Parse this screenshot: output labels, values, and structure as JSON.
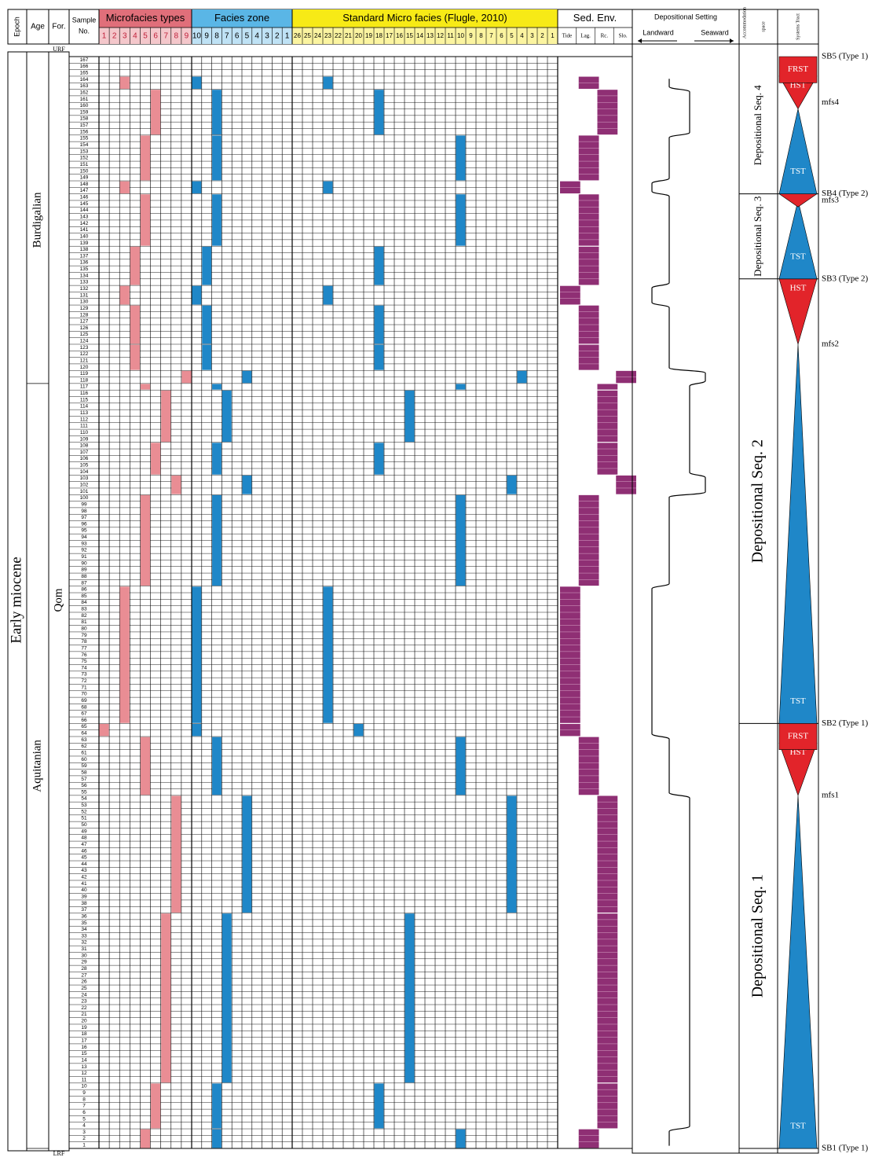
{
  "headers": {
    "epoch": "Epoch",
    "age": "Age",
    "formation": "For.",
    "sample": [
      "Sample",
      "No."
    ],
    "microfacies": "Microfacies types",
    "facies_zone": "Facies zone",
    "smf": "Standard Micro facies (Flugle, 2010)",
    "sed_env": "Sed. Env.",
    "dep_setting": "Depositional Setting",
    "landward": "Landward",
    "seaward": "Seaward",
    "accommodation": [
      "Accommodation",
      "space"
    ],
    "systems_tract": "Systems Tract"
  },
  "colors": {
    "pink": "#e98d94",
    "pink_header": "#e06f7a",
    "blue": "#1f87c8",
    "blue_header": "#5ab6e6",
    "yellow": "#f7ea16",
    "purple": "#8f2f74",
    "red": "#e2242a",
    "tri_blue": "#1f87c8"
  },
  "mf_cols": [
    "1",
    "2",
    "3",
    "4",
    "5",
    "6",
    "7",
    "8",
    "9"
  ],
  "fz_cols": [
    "10",
    "9",
    "8",
    "7",
    "6",
    "5",
    "4",
    "3",
    "2",
    "1"
  ],
  "smf_cols": [
    "26",
    "25",
    "24",
    "23",
    "22",
    "21",
    "20",
    "19",
    "18",
    "17",
    "16",
    "15",
    "14",
    "13",
    "12",
    "11",
    "10",
    "9",
    "8",
    "7",
    "6",
    "5",
    "4",
    "3",
    "2",
    "1"
  ],
  "env_cols": [
    "Tide",
    "Lag.",
    "Rc.",
    "Slo."
  ],
  "epoch_label": "Early miocene",
  "ages": [
    {
      "label": "Burdigalian",
      "from": 118,
      "to": 167
    },
    {
      "label": "Aquitanian",
      "from": 1,
      "to": 117
    }
  ],
  "formation": {
    "label": "Qom",
    "top": "URF",
    "bottom": "LRF"
  },
  "samples": {
    "first": 1,
    "last": 167
  },
  "rows": [
    {
      "from": 1,
      "to": 3,
      "mf": 5,
      "fz": 8,
      "smf": 10,
      "env": "Lag."
    },
    {
      "from": 4,
      "to": 10,
      "mf": 6,
      "fz": 8,
      "smf": 18,
      "env": "Rc."
    },
    {
      "from": 11,
      "to": 36,
      "mf": 7,
      "fz": 7,
      "smf": 15,
      "env": "Rc."
    },
    {
      "from": 37,
      "to": 54,
      "mf": 8,
      "fz": 5,
      "smf": 5,
      "env": "Rc."
    },
    {
      "from": 55,
      "to": 63,
      "mf": 5,
      "fz": 8,
      "smf": 10,
      "env": "Lag."
    },
    {
      "from": 64,
      "to": 65,
      "mf": 1,
      "fz": 10,
      "smf": 20,
      "env": "Tide"
    },
    {
      "from": 66,
      "to": 86,
      "mf": 3,
      "fz": 10,
      "smf": 23,
      "env": "Tide"
    },
    {
      "from": 87,
      "to": 100,
      "mf": 5,
      "fz": 8,
      "smf": 10,
      "env": "Lag."
    },
    {
      "from": 101,
      "to": 103,
      "mf": 8,
      "fz": 5,
      "smf": 5,
      "env": "Slo."
    },
    {
      "from": 104,
      "to": 108,
      "mf": 6,
      "fz": 8,
      "smf": 18,
      "env": "Rc."
    },
    {
      "from": 109,
      "to": 116,
      "mf": 7,
      "fz": 7,
      "smf": 15,
      "env": "Rc."
    },
    {
      "from": 117,
      "to": 117,
      "mf": 5,
      "fz": 8,
      "smf": 10,
      "env": "Rc."
    },
    {
      "from": 118,
      "to": 119,
      "mf": 9,
      "fz": 5,
      "smf": 4,
      "env": "Slo."
    },
    {
      "from": 120,
      "to": 123,
      "mf": 4,
      "fz": 9,
      "smf": 18,
      "env": "Lag."
    },
    {
      "from": 124,
      "to": 129,
      "mf": 4,
      "fz": 9,
      "smf": 18,
      "env": "Lag."
    },
    {
      "from": 130,
      "to": 132,
      "mf": 3,
      "fz": 10,
      "smf": 23,
      "env": "Tide"
    },
    {
      "from": 133,
      "to": 138,
      "mf": 4,
      "fz": 9,
      "smf": 18,
      "env": "Lag."
    },
    {
      "from": 139,
      "to": 146,
      "mf": 5,
      "fz": 8,
      "smf": 10,
      "env": "Lag."
    },
    {
      "from": 147,
      "to": 148,
      "mf": 3,
      "fz": 10,
      "smf": 23,
      "env": "Tide"
    },
    {
      "from": 149,
      "to": 155,
      "mf": 5,
      "fz": 8,
      "smf": 10,
      "env": "Lag."
    },
    {
      "from": 156,
      "to": 162,
      "mf": 6,
      "fz": 8,
      "smf": 18,
      "env": "Rc."
    },
    {
      "from": 163,
      "to": 164,
      "mf": 3,
      "fz": 10,
      "smf": 23,
      "env": "Lag."
    }
  ],
  "sequences": [
    {
      "label": "Depositional Seq. 1",
      "from": 1,
      "to": 65
    },
    {
      "label": "Depositional Seq. 2",
      "from": 66,
      "to": 133
    },
    {
      "label": "Depositional Seq. 3",
      "from": 134,
      "to": 146
    },
    {
      "label": "Depositional Seq. 4",
      "from": 147,
      "to": 167
    }
  ],
  "tracts": [
    {
      "label": "TST",
      "kind": "up",
      "color": "blue",
      "from": 1,
      "to": 54
    },
    {
      "label": "HST",
      "kind": "down",
      "color": "red",
      "from": 55,
      "to": 62
    },
    {
      "label": "FRST",
      "kind": "band",
      "color": "red",
      "from": 62,
      "to": 65
    },
    {
      "label": "TST",
      "kind": "up",
      "color": "blue",
      "from": 66,
      "to": 123
    },
    {
      "label": "HST",
      "kind": "down",
      "color": "red",
      "from": 124,
      "to": 133
    },
    {
      "label": "TST",
      "kind": "up",
      "color": "blue",
      "from": 134,
      "to": 145
    },
    {
      "label": "",
      "kind": "down",
      "color": "red",
      "from": 145,
      "to": 146
    },
    {
      "label": "TST",
      "kind": "up",
      "color": "blue",
      "from": 147,
      "to": 159
    },
    {
      "label": "HST",
      "kind": "down",
      "color": "red",
      "from": 160,
      "to": 164
    },
    {
      "label": "FRST",
      "kind": "band",
      "color": "red",
      "from": 164,
      "to": 167
    }
  ],
  "surfaces": [
    {
      "label": "SB1 (Type 1)",
      "at": 0
    },
    {
      "label": "mfs1",
      "at": 54
    },
    {
      "label": "SB2 (Type 1)",
      "at": 65
    },
    {
      "label": "mfs2",
      "at": 123
    },
    {
      "label": "SB3 (Type 2)",
      "at": 133
    },
    {
      "label": "mfs3",
      "at": 145
    },
    {
      "label": "SB4 (Type 2)",
      "at": 146
    },
    {
      "label": "mfs4",
      "at": 160
    },
    {
      "label": "SB5 (Type 1)",
      "at": 167
    }
  ]
}
